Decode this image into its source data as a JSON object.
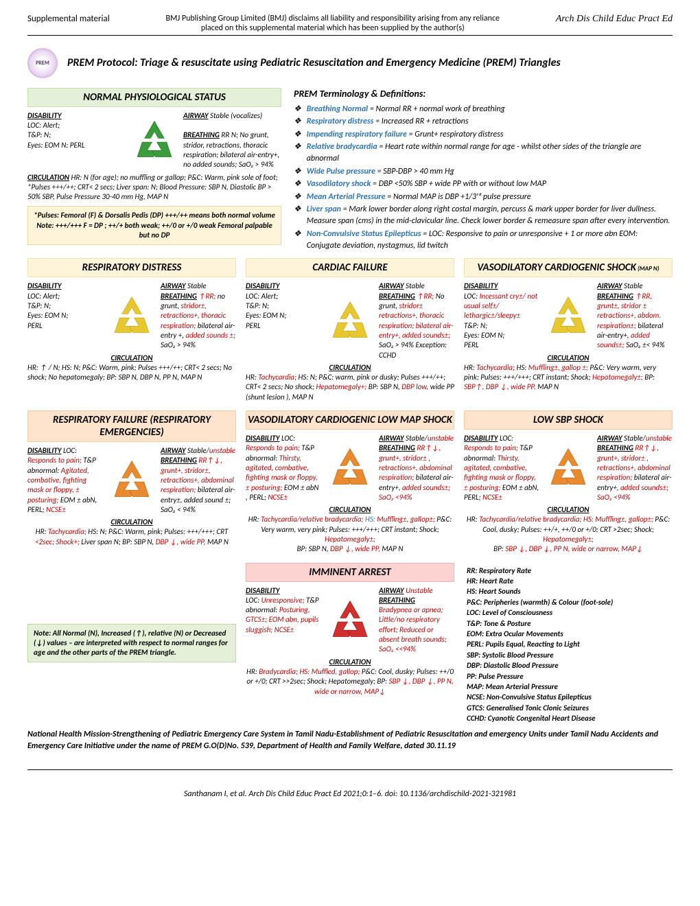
{
  "header": {
    "supplemental": "Supplemental material",
    "disclaimer_l1": "BMJ Publishing Group Limited (BMJ) disclaims all liability and responsibility arising from any reliance",
    "disclaimer_l2": "placed on this supplemental material which has been supplied by the author(s)",
    "journal": "Arch Dis Child Educ Pract Ed"
  },
  "title": "PREM Protocol: Triage & resuscitate using Pediatric Resuscitation and Emergency Medicine (PREM) Triangles",
  "normal_header": "NORMAL PHYSIOLOGICAL STATUS",
  "normal": {
    "disability": "DISABILITY",
    "disability_body": "LOC: Alert;\nT&P: N;\nEyes: EOM N; PERL",
    "airway": "AIRWAY",
    "airway_body": " Stable (vocalizes)",
    "breathing": "BREATHING",
    "breathing_body": " RR N; No grunt, stridor, retractions, thoracic respiration; bilateral air-entry+, no added sounds; SaO₂ > 94%",
    "circulation": "CIRCULATION",
    "circulation_body": " HR: N (for age); no muffling or gallop; P&C: Warm, pink sole of foot; *Pulses +++/++; CRT< 2 secs; Liver span: N; Blood Pressure: SBP N, Diastolic BP > 50% SBP, Pulse Pressure 30-40 mm Hg, MAP N"
  },
  "pulses_note": "*Pulses: Femoral (F) & Dorsalis Pedis (DP) +++/++ means both normal volume\nNote: +++/+++  F = DP ; ++/+ both weak; ++/0 or +/0 weak Femoral palpable but no DP",
  "terminology_title": "PREM Terminology & Definitions:",
  "terms": [
    {
      "name": "Breathing Normal",
      "def": " = Normal RR + normal work of breathing"
    },
    {
      "name": "Respiratory distress",
      "def": " = Increased RR + retractions"
    },
    {
      "name": "Impending respiratory failure",
      "def": " = Grunt+ respiratory distress"
    },
    {
      "name": "Relative bradycardia",
      "def": " = Heart rate within normal range for age - whilst other sides of the triangle are abnormal"
    },
    {
      "name": "Wide Pulse pressure",
      "def": " = SBP-DBP > 40 mm Hg"
    },
    {
      "name": "Vasodilatory shock",
      "def": " = DBP <50% SBP + wide PP with or without low MAP"
    },
    {
      "name": "Mean Arterial Pressure",
      "def": " = Normal MAP is DBP +1/3ʳᵈ pulse pressure"
    },
    {
      "name": "Liver span",
      "def": " = Mark lower border along right costal margin, percuss & mark upper border for liver dullness. Measure span (cms) in the mid-clavicular line. Check lower border & remeasure span after every intervention."
    },
    {
      "name": "Non-Convulsive Status Epilepticus",
      "def": " = LOC: Responsive to pain or unresponsive + 1 or more abn EOM: Conjugate deviation, nystagmus, lid twitch"
    }
  ],
  "headers": {
    "resp_distress": "RESPIRATORY DISTRESS",
    "cardiac_failure": "CARDIAC FAILURE",
    "vaso_cardio_shock": "VASODILATORY CARDIOGENIC SHOCK",
    "vaso_cardio_shock_suffix": " (MAP N)",
    "resp_failure": "RESPIRATORY FAILURE (RESPIRATORY EMERGENCIES)",
    "vaso_lowmap": "VASODILATORY CARDIOGENIC LOW MAP SHOCK",
    "low_sbp": "LOW SBP SHOCK",
    "imminent": "IMMINENT ARREST"
  },
  "resp_distress": {
    "disL": "LOC: Alert;\nT&P: N;\nEyes: EOM N;\nPERL",
    "airR": " Stable",
    "brlabel": "BREATHING",
    "brR_pre": " ",
    "brR_red": "↑RR; ",
    "brR_post": "no grunt, ",
    "brR_red2": "stridor±, retractions+, thoracic respiration; ",
    "brR_post2": "bilateral air-entry +, ",
    "brR_red3": "added sounds ±; ",
    "brR_post3": "SaO₂ > 94%",
    "circ": "HR: ↑ / N; HS: N; P&C: Warm, pink; Pulses +++/++; CRT< 2 secs; No shock;  No hepatomegaly; BP: SBP N, DBP N, PP N,  MAP N"
  },
  "cardiac_failure": {
    "disL": "LOC: Alert;\nT&P: N;\nEyes: EOM N;\nPERL",
    "airR": " Stable",
    "brR": "↑RR;",
    "brR2": " No grunt, ",
    "brR3": "stridor± retractions+, thoracic respiration; bilateral air-entry+, added sounds±; ",
    "brR4": "SaO₂ > 94% Exception: CCHD",
    "circ_pre": "HR: ",
    "circ_r1": "Tachycardia;",
    "circ_mid": " HS: N; P&C: warm, pink or dusky; Pulses +++/++; CRT< 2 secs; No shock; ",
    "circ_r2": "Hepatomegaly+;",
    "circ_post": " BP: SBP N, ",
    "circ_r3": "DBP low,",
    "circ_post2": " wide PP (shunt lesion ), MAP N"
  },
  "vaso_shock": {
    "disL_pre": "LOC: ",
    "disL_red": "Incessant cry±/ not usual self±/ lethargic±/sleepy±",
    "disL_post": "\nT&P: N;\nEyes: EOM N;\nPERL",
    "airR": " Stable",
    "brR": "↑RR, grunt±, stridor ± retractions+, abdom. respiration±; ",
    "brR2": "bilateral air-entry+, ",
    "brR3": "added sounds±;",
    "brR4": " SaO₂ ±< 94%",
    "circ": "HR: ",
    "circ_r1": "Tachycardia;",
    "circ2": " HS: ",
    "circ_r2": "Muffling±, gallop ±;",
    "circ3": " P&C: Very warm, very pink; Pulses: +++/+++; CRT instant; Shock; ",
    "circ_r3": "Hepatomegaly±;",
    "circ4": " BP: ",
    "circ_r4": "SBP↑, DBP ↓, wide PP,",
    "circ5": "  MAP N"
  },
  "resp_failure": {
    "disL_pre": "LOC: ",
    "disL_red": "Responds to pain;",
    "disL_post": " T&P abnormal: ",
    "disL_red2": "Agitated, combative, fighting mask or floppy, ± posturing;",
    "disL_post2": " EOM ± abN, PERL; ",
    "disL_red3": "NCSE±",
    "airR": " Stable/",
    "airR_red": "unstable",
    "brR": " RR↑↓, grunt+, stridor±, retractions+, abdominal respiration; ",
    "brR2": "bilateral air-entry±, added sound ±; SaO₂ < 94%",
    "circ": "HR: ",
    "circ_r1": "Tachycardia;",
    "circ2": " HS: N; P&C: Warm, pink; Pulses: +++/+++; CRT ",
    "circ_r2": "<2sec; Shock+;",
    "circ3": " Liver span N; BP: SBP N, ",
    "circ_r3": "DBP ↓, wide PP,",
    "circ4": "  MAP N"
  },
  "vaso_lowmap": {
    "disL_pre": "LOC: ",
    "disL_red": "Responds to pain;",
    "disL_post": " T&P abnormal: ",
    "disL_red2": "Thirsty, agitated, combative, fighting mask or floppy, ± posturing;",
    "disL_post2": " EOM ± abN , PERL; ",
    "disL_red3": "NCSE±",
    "airR": " Stable/",
    "airR_red": "unstable",
    "brR": " RR↑↓, grunt+, stridor± , retractions+, abdominal respiration;",
    "brR2": " bilateral air-entry+, ",
    "brR3": "added sounds±; SaO₂ <94%",
    "circ": "HR: ",
    "circ_r1": "Tachycardia/relative bradycardia; ",
    "circ_b": "HS: ",
    "circ_r2": "Muffling±, gallop±;",
    "circ2": " P&C: Very warm, very pink; Pulses: +++/+++; CRT instant; Shock; ",
    "circ_r3": "Hepatomegaly±;",
    "circ3": "\nBP: SBP N, ",
    "circ_r4": "DBP ↓, wide PP,",
    "circ4": "  MAP N"
  },
  "low_sbp": {
    "disL_pre": "LOC: ",
    "disL_red": "Responds to pain;",
    "disL_post": " T&P abnormal: ",
    "disL_red2": "Thirsty, agitated, combative, fighting mask or floppy, ± posturing;",
    "disL_post2": " EOM ± abN, PERL; ",
    "disL_red3": "NCSE±",
    "airR": " Stable/",
    "airR_red": "unstable",
    "brR": " RR↑↓, grunt+, stridor± , retractions+, abdominal respiration;",
    "brR2": " bilateral air-entry+, ",
    "brR3": "added sounds±; SaO₂ <94%",
    "circ": "HR: ",
    "circ_r1": "Tachycardia/relative bradycardia; HS: Muffling±, gallop±;",
    "circ2": " P&C: Cool, dusky; Pulses: ++/+, ++/0 or +/0; CRT >2sec; Shock; ",
    "circ_r2": "Hepatomegaly±;",
    "circ3": "\nBP: ",
    "circ_r3": "SBP ↓,  DBP ↓, PP N, wide or narrow,  MAP↓"
  },
  "imminent": {
    "disL_pre": "LOC: ",
    "disL_red": "Unresponsive;",
    "disL_post": " T&P abnormal: ",
    "disL_red2": "Posturing, GTCS±; EOM abn, pupils sluggish; NCSE±",
    "airR_red": "Unstable",
    "brR": "Bradypnea or apnea; Little/no respiratory effort; Reduced or absent breath sounds; SaO₂ <<94%",
    "circ": "HR: ",
    "circ_r1": "Bradycardia; HS: Muffled, gallop;",
    "circ2": " P&C: Cool, dusky; Pulses: ++/0 or +/0; CRT >>2sec; Shock; Hepatomegaly; BP: ",
    "circ_r2": "SBP ↓,  DBP ↓, PP N, wide or narrow,  MAP↓"
  },
  "interp_note": "Note: All Normal (N), Increased (↑), relative (N) or Decreased (↓) values – are interpreted with respect to normal ranges for age and the other parts of the PREM triangle.",
  "abbrev": "RR: Respiratory Rate\nHR: Heart Rate\nHS: Heart Sounds\nP&C: Peripheries (warmth) & Colour (foot-sole)\nLOC: Level of Consciousness\nT&P: Tone & Posture\nEOM: Extra Ocular Movements\nPERL: Pupils Equal, Reacting to Light\nSBP: Systolic Blood Pressure\nDBP: Diastolic Blood Pressure\nPP: Pulse Pressure\nMAP: Mean Arterial Pressure\nNCSE: Non-Convulsive Status Epilepticus\nGTCS: Generalised Tonic Clonic Seizures\nCCHD: Cyanotic Congenital Heart Disease",
  "footnote": "National Health Mission-Strengthening of Pediatric Emergency Care System in Tamil Nadu-Establishment of Pediatric Resuscitation and emergency Units under Tamil Nadu Accidents and Emergency Care Initiative under the name of PREM G.O(D)No. 539, Department of Health and Family Welfare, dated 30.11.19",
  "footer": "Santhanam I, et al. Arch Dis Child Educ Pract Ed 2021;0:1–6. doi: 10.1136/archdischild-2021-321981",
  "labels": {
    "disability": "DISABILITY",
    "airway": "AIRWAY",
    "breathing": "BREATHING",
    "circulation": "CIRCULATION"
  },
  "colors": {
    "green": "#3a9c3a",
    "yellow": "#e8c830",
    "orange": "#e88a30",
    "red": "#c00000",
    "redtri": "#d03030",
    "header_green_bg": "#e4f0d8",
    "header_yellow_bg": "#fef4da",
    "header_orange_bg": "#fde3cc",
    "header_red_bg": "#fbd4d2",
    "term_blue": "#2e74b5"
  }
}
